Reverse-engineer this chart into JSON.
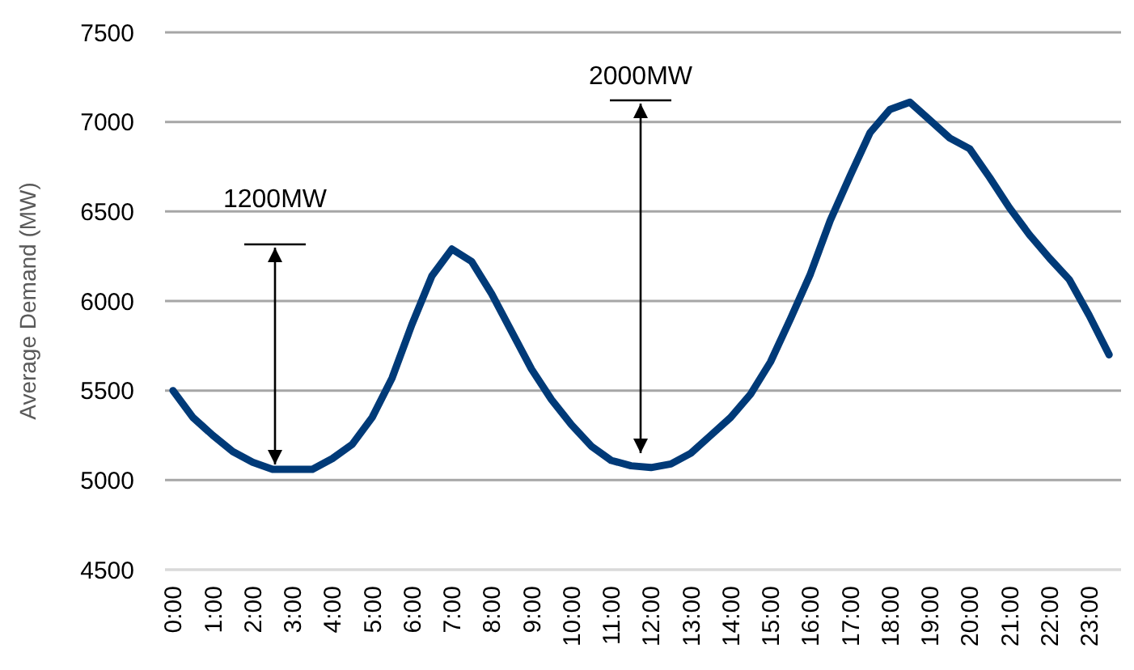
{
  "chart_data": {
    "type": "line",
    "ylabel": "Average Demand (MW)",
    "x": [
      0,
      0.5,
      1,
      1.5,
      2,
      2.5,
      3,
      3.5,
      4,
      4.5,
      5,
      5.5,
      6,
      6.5,
      7,
      7.5,
      8,
      8.5,
      9,
      9.5,
      10,
      10.5,
      11,
      11.5,
      12,
      12.5,
      13,
      13.5,
      14,
      14.5,
      15,
      15.5,
      16,
      16.5,
      17,
      17.5,
      18,
      18.5,
      19,
      19.5,
      20,
      20.5,
      21,
      21.5,
      22,
      22.5,
      23,
      23.5
    ],
    "series": [
      {
        "color": "#003a78",
        "values": [
          5500,
          5350,
          5250,
          5160,
          5100,
          5060,
          5060,
          5060,
          5120,
          5200,
          5350,
          5570,
          5870,
          6140,
          6290,
          6220,
          6040,
          5830,
          5620,
          5450,
          5310,
          5190,
          5110,
          5080,
          5070,
          5090,
          5150,
          5250,
          5350,
          5480,
          5660,
          5900,
          6150,
          6450,
          6700,
          6940,
          7070,
          7110,
          7010,
          6910,
          6850,
          6690,
          6520,
          6370,
          6240,
          6120,
          5920,
          5700
        ]
      }
    ],
    "xlim": [
      -0.2,
      23.8
    ],
    "ylim": [
      4500,
      7500
    ],
    "yticks": [
      4500,
      5000,
      5500,
      6000,
      6500,
      7000,
      7500
    ],
    "xticks": [
      {
        "value": 0,
        "label": "0:00"
      },
      {
        "value": 1,
        "label": "1:00"
      },
      {
        "value": 2,
        "label": "2:00"
      },
      {
        "value": 3,
        "label": "3:00"
      },
      {
        "value": 4,
        "label": "4:00"
      },
      {
        "value": 5,
        "label": "5:00"
      },
      {
        "value": 6,
        "label": "6:00"
      },
      {
        "value": 7,
        "label": "7:00"
      },
      {
        "value": 8,
        "label": "8:00"
      },
      {
        "value": 9,
        "label": "9:00"
      },
      {
        "value": 10,
        "label": "10:00"
      },
      {
        "value": 11,
        "label": "11:00"
      },
      {
        "value": 12,
        "label": "12:00"
      },
      {
        "value": 13,
        "label": "13:00"
      },
      {
        "value": 14,
        "label": "14:00"
      },
      {
        "value": 15,
        "label": "15:00"
      },
      {
        "value": 16,
        "label": "16:00"
      },
      {
        "value": 17,
        "label": "17:00"
      },
      {
        "value": 18,
        "label": "18:00"
      },
      {
        "value": 19,
        "label": "19:00"
      },
      {
        "value": 20,
        "label": "20:00"
      },
      {
        "value": 21,
        "label": "21:00"
      },
      {
        "value": 22,
        "label": "22:00"
      },
      {
        "value": 23,
        "label": "23:00"
      }
    ],
    "grid": "y",
    "marker": "none",
    "line_style": "solid",
    "annotations": [
      "1200MW",
      "2000MW"
    ]
  }
}
